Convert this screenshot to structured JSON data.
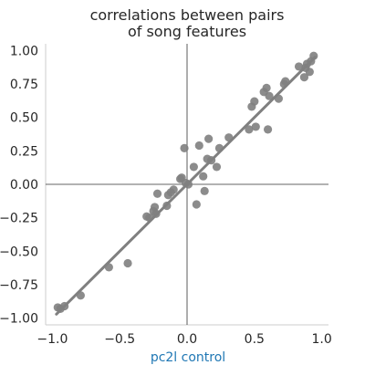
{
  "chart_data": {
    "type": "scatter",
    "title_lines": [
      "correlations between pairs",
      "of song features"
    ],
    "xlabel": "pc2l control",
    "ylabel": "",
    "xlim": [
      -1.0,
      1.0
    ],
    "ylim": [
      -1.0,
      1.0
    ],
    "grid": false,
    "x_ticks": [
      "−1.0",
      "−0.5",
      "0.0",
      "0.5",
      "1.0"
    ],
    "y_ticks": [
      "1.00",
      "0.75",
      "0.50",
      "0.25",
      "0.00",
      "−0.25",
      "−0.50",
      "−0.75",
      "−1.00"
    ],
    "x_tick_values": [
      -1.0,
      -0.5,
      0.0,
      0.5,
      1.0
    ],
    "y_tick_values": [
      1.0,
      0.75,
      0.5,
      0.25,
      0.0,
      -0.25,
      -0.5,
      -0.75,
      -1.0
    ],
    "point_color": "#808080",
    "line_color": "#808080",
    "regression": {
      "slope": 1.0,
      "intercept": 0.0,
      "x_range": [
        -0.97,
        0.95
      ]
    },
    "points": [
      {
        "x": -0.96,
        "y": -0.92
      },
      {
        "x": -0.94,
        "y": -0.93
      },
      {
        "x": -0.91,
        "y": -0.91
      },
      {
        "x": -0.79,
        "y": -0.83
      },
      {
        "x": -0.58,
        "y": -0.62
      },
      {
        "x": -0.44,
        "y": -0.59
      },
      {
        "x": -0.3,
        "y": -0.24
      },
      {
        "x": -0.28,
        "y": -0.25
      },
      {
        "x": -0.25,
        "y": -0.2
      },
      {
        "x": -0.24,
        "y": -0.17
      },
      {
        "x": -0.23,
        "y": -0.22
      },
      {
        "x": -0.22,
        "y": -0.07
      },
      {
        "x": -0.15,
        "y": -0.16
      },
      {
        "x": -0.14,
        "y": -0.08
      },
      {
        "x": -0.12,
        "y": -0.06
      },
      {
        "x": -0.1,
        "y": -0.04
      },
      {
        "x": -0.05,
        "y": 0.04
      },
      {
        "x": -0.04,
        "y": 0.05
      },
      {
        "x": -0.02,
        "y": 0.27
      },
      {
        "x": -0.01,
        "y": 0.01
      },
      {
        "x": 0.01,
        "y": 0.0
      },
      {
        "x": 0.05,
        "y": 0.13
      },
      {
        "x": 0.07,
        "y": -0.15
      },
      {
        "x": 0.09,
        "y": 0.29
      },
      {
        "x": 0.12,
        "y": 0.06
      },
      {
        "x": 0.13,
        "y": -0.05
      },
      {
        "x": 0.15,
        "y": 0.19
      },
      {
        "x": 0.16,
        "y": 0.34
      },
      {
        "x": 0.18,
        "y": 0.18
      },
      {
        "x": 0.22,
        "y": 0.13
      },
      {
        "x": 0.24,
        "y": 0.27
      },
      {
        "x": 0.31,
        "y": 0.35
      },
      {
        "x": 0.46,
        "y": 0.41
      },
      {
        "x": 0.48,
        "y": 0.58
      },
      {
        "x": 0.5,
        "y": 0.62
      },
      {
        "x": 0.51,
        "y": 0.43
      },
      {
        "x": 0.57,
        "y": 0.69
      },
      {
        "x": 0.59,
        "y": 0.72
      },
      {
        "x": 0.6,
        "y": 0.41
      },
      {
        "x": 0.61,
        "y": 0.66
      },
      {
        "x": 0.68,
        "y": 0.64
      },
      {
        "x": 0.72,
        "y": 0.75
      },
      {
        "x": 0.73,
        "y": 0.77
      },
      {
        "x": 0.83,
        "y": 0.88
      },
      {
        "x": 0.87,
        "y": 0.8
      },
      {
        "x": 0.88,
        "y": 0.87
      },
      {
        "x": 0.89,
        "y": 0.9
      },
      {
        "x": 0.91,
        "y": 0.84
      },
      {
        "x": 0.92,
        "y": 0.92
      },
      {
        "x": 0.94,
        "y": 0.96
      }
    ]
  }
}
